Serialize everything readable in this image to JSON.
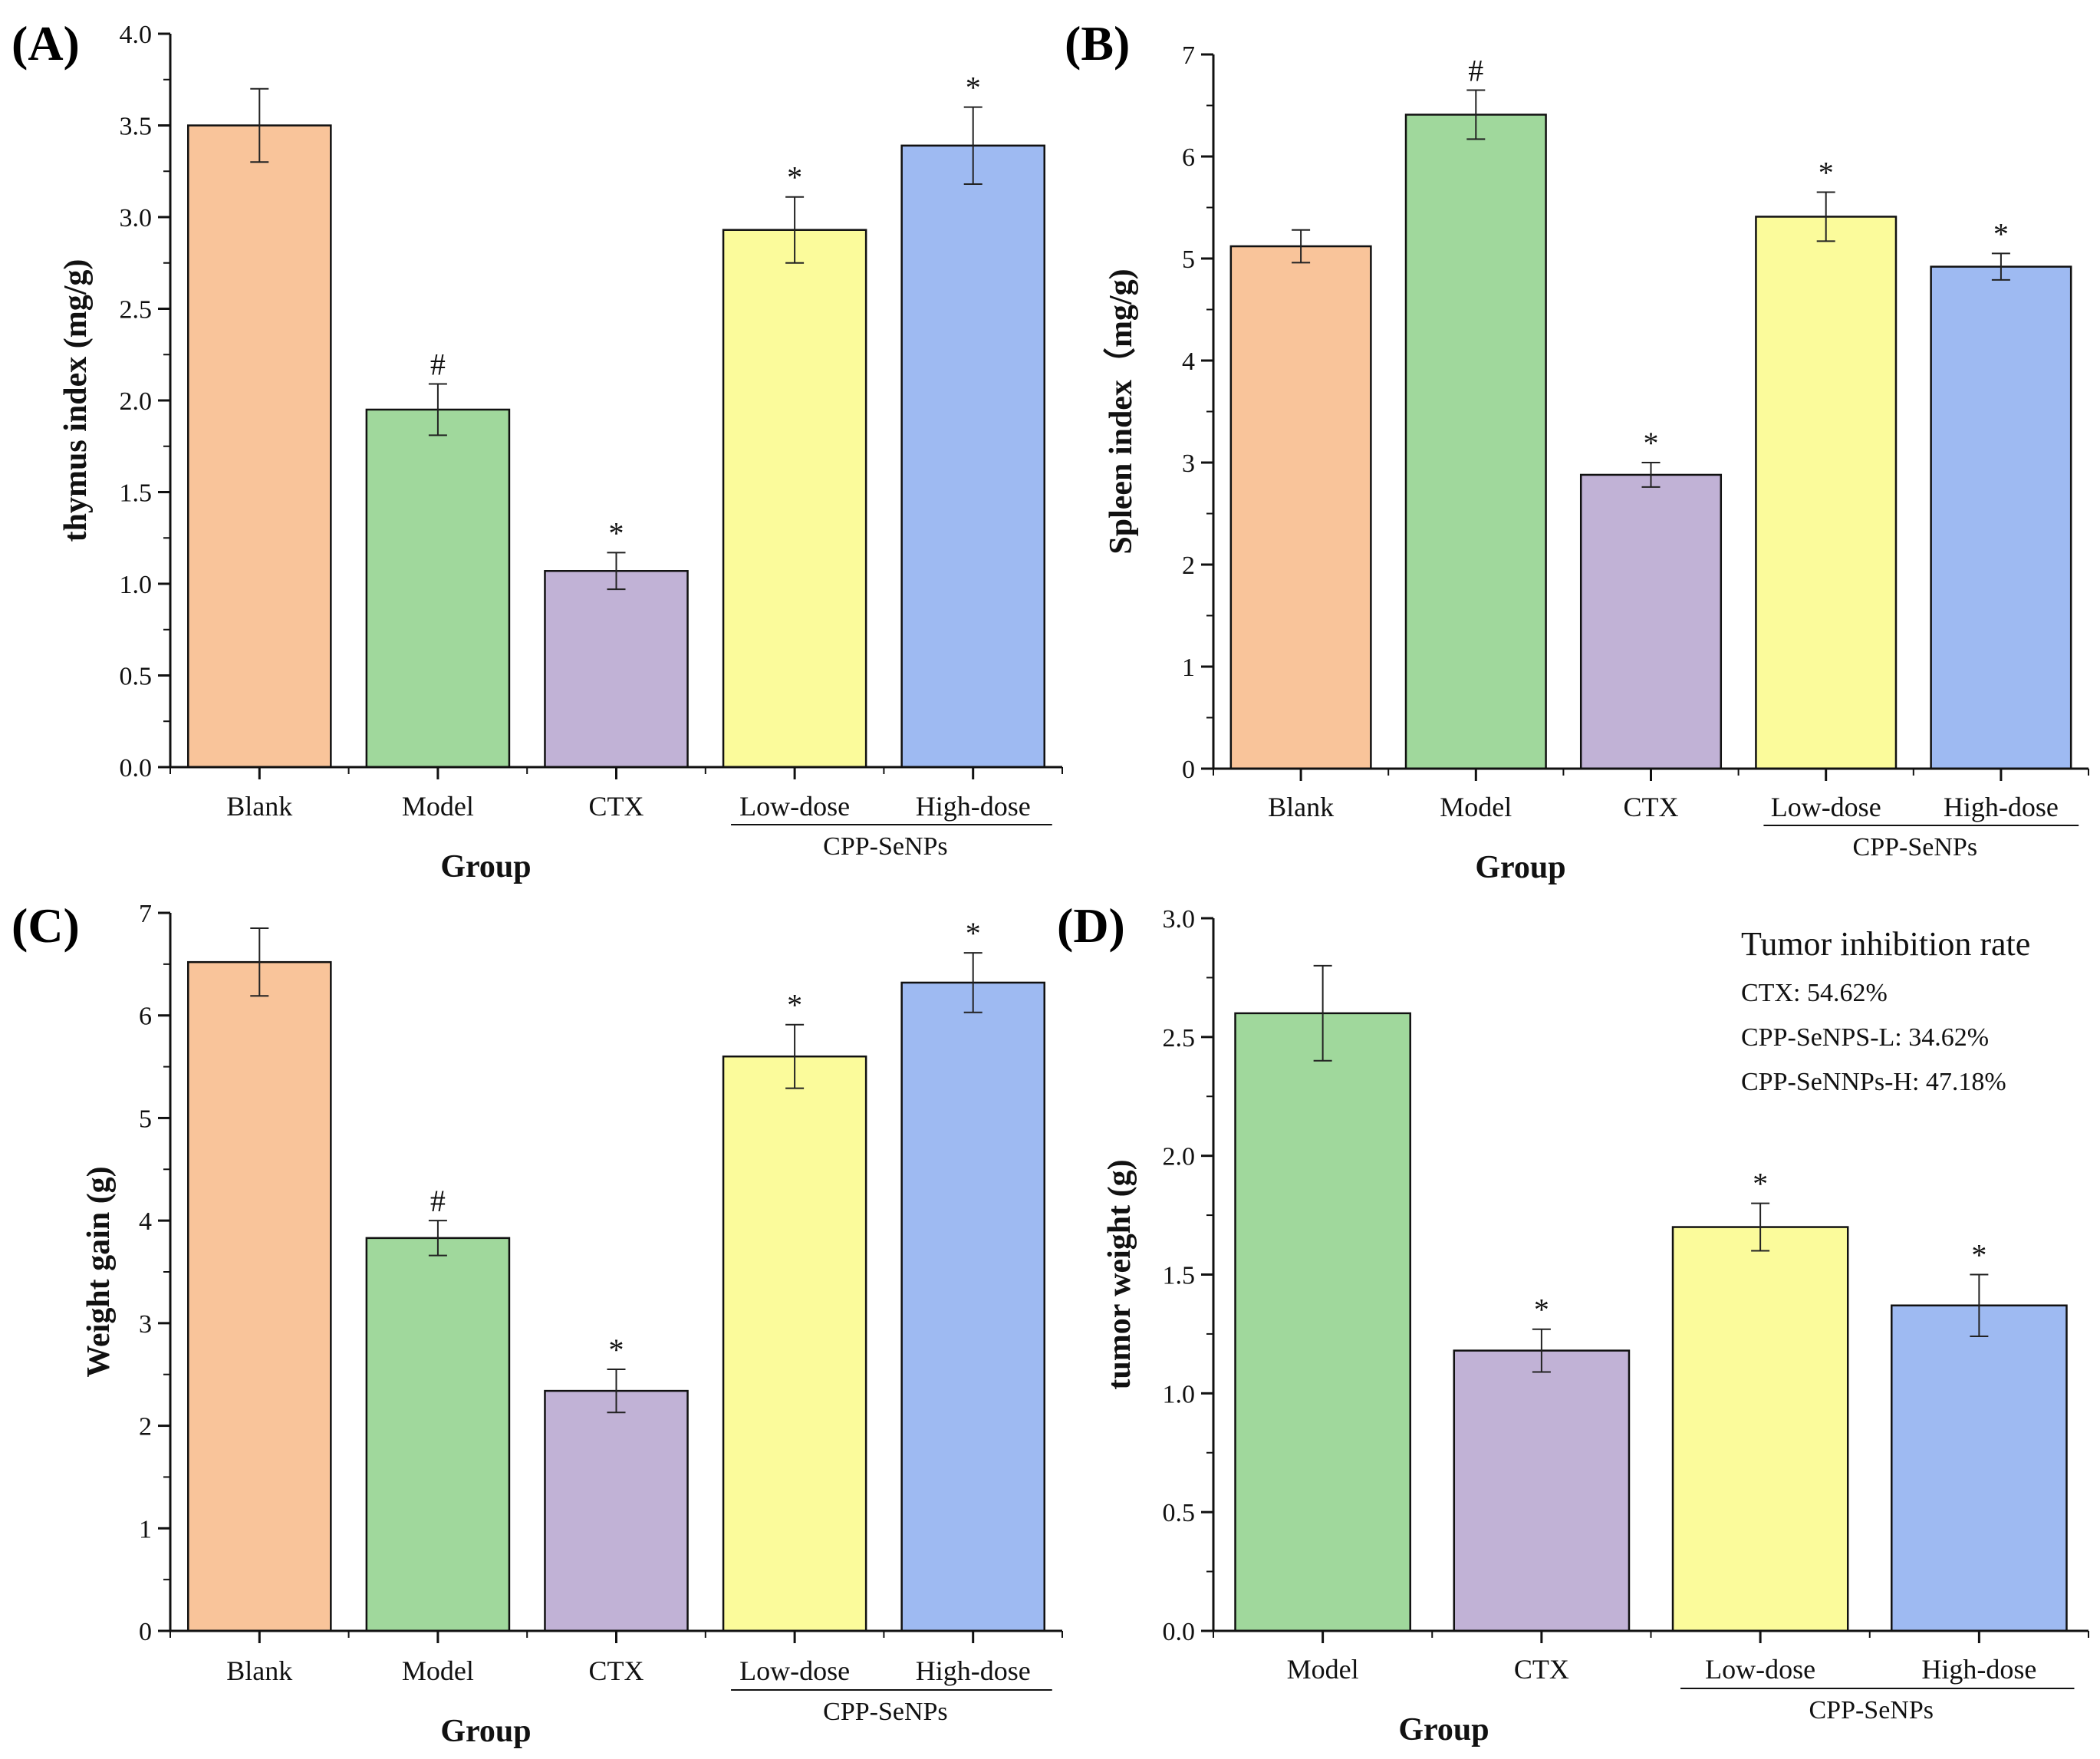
{
  "colors": {
    "Blank": "#f9c49a",
    "Model": "#a0d89c",
    "CTX": "#c1b2d6",
    "Low-dose": "#fbfb9b",
    "High-dose": "#9ebaf2"
  },
  "chart_data": [
    {
      "panel": "(A)",
      "type": "bar",
      "categories": [
        "Blank",
        "Model",
        "CTX",
        "Low-dose",
        "High-dose"
      ],
      "values": [
        3.5,
        1.95,
        1.07,
        2.93,
        3.39
      ],
      "errors": [
        0.2,
        0.14,
        0.1,
        0.18,
        0.21
      ],
      "significance": [
        "",
        "#",
        "*",
        "*",
        "*"
      ],
      "ylabel": "thymus index (mg/g)",
      "xlabel": "Group",
      "group_label": "CPP-SeNPs",
      "ylim": [
        0,
        4.0
      ],
      "yticks": [
        "0.0",
        "0.5",
        "1.0",
        "1.5",
        "2.0",
        "2.5",
        "3.0",
        "3.5",
        "4.0"
      ]
    },
    {
      "panel": "(B)",
      "type": "bar",
      "categories": [
        "Blank",
        "Model",
        "CTX",
        "Low-dose",
        "High-dose"
      ],
      "values": [
        5.12,
        6.41,
        2.88,
        5.41,
        4.92
      ],
      "errors": [
        0.16,
        0.24,
        0.12,
        0.24,
        0.13
      ],
      "significance": [
        "",
        "#",
        "*",
        "*",
        "*"
      ],
      "ylabel": "Spleen index（mg/g)",
      "xlabel": "Group",
      "group_label": "CPP-SeNPs",
      "ylim": [
        0,
        7
      ],
      "yticks": [
        "0",
        "1",
        "2",
        "3",
        "4",
        "5",
        "6",
        "7"
      ]
    },
    {
      "panel": "(C)",
      "type": "bar",
      "categories": [
        "Blank",
        "Model",
        "CTX",
        "Low-dose",
        "High-dose"
      ],
      "values": [
        6.52,
        3.83,
        2.34,
        5.6,
        6.32
      ],
      "errors": [
        0.33,
        0.17,
        0.21,
        0.31,
        0.29
      ],
      "significance": [
        "",
        "#",
        "*",
        "*",
        "*"
      ],
      "ylabel": "Weight gain (g)",
      "xlabel": "Group",
      "group_label": "CPP-SeNPs",
      "ylim": [
        0,
        7
      ],
      "yticks": [
        "0",
        "1",
        "2",
        "3",
        "4",
        "5",
        "6",
        "7"
      ]
    },
    {
      "panel": "(D)",
      "type": "bar",
      "categories": [
        "Model",
        "CTX",
        "Low-dose",
        "High-dose"
      ],
      "values": [
        2.6,
        1.18,
        1.7,
        1.37
      ],
      "errors": [
        0.2,
        0.09,
        0.1,
        0.13
      ],
      "significance": [
        "",
        "*",
        "*",
        "*"
      ],
      "ylabel": "tumor weight (g)",
      "xlabel": "Group",
      "group_label": "CPP-SeNPs",
      "ylim": [
        0,
        3.0
      ],
      "yticks": [
        "0.0",
        "0.5",
        "1.0",
        "1.5",
        "2.0",
        "2.5",
        "3.0"
      ],
      "annotation": {
        "title": "Tumor inhibition rate",
        "lines": [
          "CTX: 54.62%",
          "CPP-SeNPS-L: 34.62%",
          "CPP-SeNNPs-H: 47.18%"
        ]
      }
    }
  ]
}
